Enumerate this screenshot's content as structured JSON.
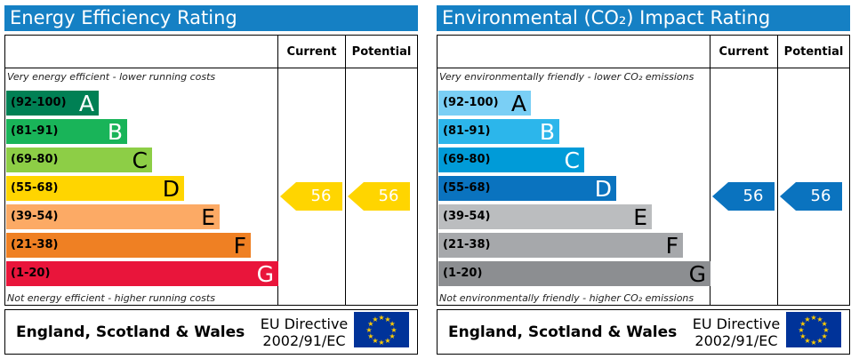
{
  "panels": [
    {
      "title": "Energy Efficiency Rating",
      "col_current": "Current",
      "col_potential": "Potential",
      "note_top": "Very energy efficient - lower running costs",
      "note_bottom": "Not energy efficient - higher running costs",
      "bands": [
        {
          "range": "(92-100)",
          "letter": "A",
          "color": "#008054",
          "fraction": 0.34
        },
        {
          "range": "(81-91)",
          "letter": "B",
          "color": "#19b459",
          "fraction": 0.445
        },
        {
          "range": "(69-80)",
          "letter": "C",
          "color": "#8dce46",
          "fraction": 0.535
        },
        {
          "range": "(55-68)",
          "letter": "D",
          "color": "#ffd500",
          "fraction": 0.655
        },
        {
          "range": "(39-54)",
          "letter": "E",
          "color": "#fcaa65",
          "fraction": 0.785
        },
        {
          "range": "(21-38)",
          "letter": "F",
          "color": "#ef8023",
          "fraction": 0.9
        },
        {
          "range": "(1-20)",
          "letter": "G",
          "color": "#e9153b",
          "fraction": 1.0
        }
      ],
      "current_value": "56",
      "potential_value": "56",
      "arrow_color": "#ffd500",
      "country": "England, Scotland & Wales",
      "directive_line1": "EU Directive",
      "directive_line2": "2002/91/EC"
    },
    {
      "title": "Environmental (CO₂) Impact Rating",
      "col_current": "Current",
      "col_potential": "Potential",
      "note_top": "Very environmentally friendly - lower CO₂ emissions",
      "note_bottom": "Not environmentally friendly - higher CO₂ emissions",
      "bands": [
        {
          "range": "(92-100)",
          "letter": "A",
          "color": "#7acff5",
          "fraction": 0.34
        },
        {
          "range": "(81-91)",
          "letter": "B",
          "color": "#2cb6eb",
          "fraction": 0.445
        },
        {
          "range": "(69-80)",
          "letter": "C",
          "color": "#009bd8",
          "fraction": 0.535
        },
        {
          "range": "(55-68)",
          "letter": "D",
          "color": "#0a73bf",
          "fraction": 0.655
        },
        {
          "range": "(39-54)",
          "letter": "E",
          "color": "#bbbdbf",
          "fraction": 0.785
        },
        {
          "range": "(21-38)",
          "letter": "F",
          "color": "#a6a8ab",
          "fraction": 0.9
        },
        {
          "range": "(1-20)",
          "letter": "G",
          "color": "#8c8e91",
          "fraction": 1.0
        }
      ],
      "current_value": "56",
      "potential_value": "56",
      "arrow_color": "#0a73bf",
      "country": "England, Scotland & Wales",
      "directive_line1": "EU Directive",
      "directive_line2": "2002/91/EC"
    }
  ]
}
